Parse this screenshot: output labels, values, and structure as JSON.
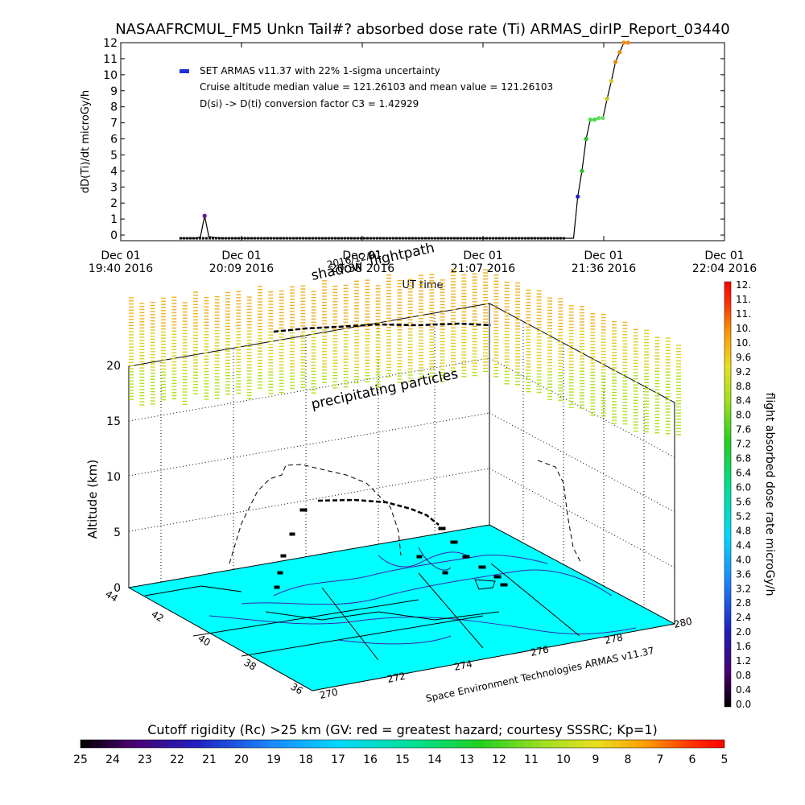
{
  "chart_data": [
    {
      "type": "line",
      "title": "NASAAFRCMUL_FM5 Unkn Tail#? absorbed dose rate (Ti) ARMAS_dirIP_Report_03440",
      "ylabel": "dD(Ti)/dt microGy/h",
      "xlabel": "UT time",
      "ylim": [
        0,
        12
      ],
      "yticks": [
        "0",
        "1",
        "2",
        "3",
        "4",
        "5",
        "6",
        "7",
        "8",
        "9",
        "10",
        "11",
        "12"
      ],
      "xticks": [
        {
          "line1": "Dec 01",
          "line2": "19:40 2016"
        },
        {
          "line1": "Dec 01",
          "line2": "20:09 2016"
        },
        {
          "line1": "Dec 01",
          "line2": "20:38 2016"
        },
        {
          "line1": "Dec 01",
          "line2": "21:07 2016"
        },
        {
          "line1": "Dec 01",
          "line2": "21:36 2016"
        },
        {
          "line1": "Dec 01",
          "line2": "22:04 2016"
        }
      ],
      "legend": [
        "SET ARMAS v11.37 with 22% 1-sigma uncertainty",
        "Cruise altitude median value = 121.26103 and mean value = 121.26103",
        "D(si) -> D(ti) conversion factor C3 = 1.42929"
      ],
      "legend_color": "#1f2fd6",
      "x_minutes_after_1940": [
        14,
        15,
        16,
        17,
        18,
        19,
        20,
        21,
        24,
        40,
        60,
        80,
        100,
        105,
        107,
        108,
        109,
        110,
        111,
        112,
        113,
        114,
        115,
        116,
        117,
        118,
        119,
        120,
        121
      ],
      "series": [
        {
          "values": [
            -0.2,
            -0.2,
            -0.2,
            -0.2,
            -0.2,
            -0.1,
            1.2,
            -0.1,
            -0.2,
            -0.2,
            -0.2,
            -0.2,
            -0.2,
            -0.2,
            -0.2,
            -0.2,
            2.4,
            4.0,
            6.0,
            7.2,
            7.2,
            7.3,
            7.3,
            8.5,
            9.6,
            10.8,
            11.4,
            12.0,
            12.2
          ]
        }
      ],
      "marker_colors": [
        "#5a1a9a",
        "#2020c0",
        "#22c022",
        "#44e044",
        "#66e066",
        "#c8c820",
        "#e88a10"
      ]
    },
    {
      "type": "scatter",
      "subtype": "3d-flight-path",
      "ylabel": "Altitude (km)",
      "zticks": [
        "0",
        "5",
        "10",
        "15",
        "20"
      ],
      "lat_ticks": [
        "44",
        "42",
        "40",
        "38",
        "36"
      ],
      "lon_ticks": [
        "270",
        "272",
        "274",
        "276",
        "278",
        "280"
      ],
      "annotations": {
        "shadow": "shadow",
        "shadow_date": "2016/12/01",
        "flightpath": "flightpath",
        "precipitating": "precipitating particles"
      },
      "credit": "Space Environment Technologies ARMAS v11.37",
      "map_color": "#00ffff",
      "colorbar": {
        "label": "flight absorbed dose rate microGy/h",
        "ticks": [
          "12.",
          "11.",
          "11.",
          "10.",
          "10.",
          "9.6",
          "9.2",
          "8.8",
          "8.4",
          "8.0",
          "7.6",
          "7.2",
          "6.8",
          "6.4",
          "6.0",
          "5.6",
          "5.2",
          "4.8",
          "4.4",
          "4.0",
          "3.6",
          "3.2",
          "2.8",
          "2.4",
          "2.0",
          "1.6",
          "1.2",
          "0.8",
          "0.4",
          "0.0"
        ]
      }
    },
    {
      "type": "heatmap",
      "subtype": "horizontal-colorbar",
      "title": "Cutoff rigidity (Rc) >25 km (GV: red = greatest hazard; courtesy SSSRC; Kp=1)",
      "ticks": [
        "25",
        "24",
        "23",
        "22",
        "21",
        "20",
        "19",
        "18",
        "17",
        "16",
        "15",
        "14",
        "13",
        "12",
        "11",
        "10",
        "9",
        "8",
        "7",
        "6",
        "5"
      ]
    }
  ]
}
